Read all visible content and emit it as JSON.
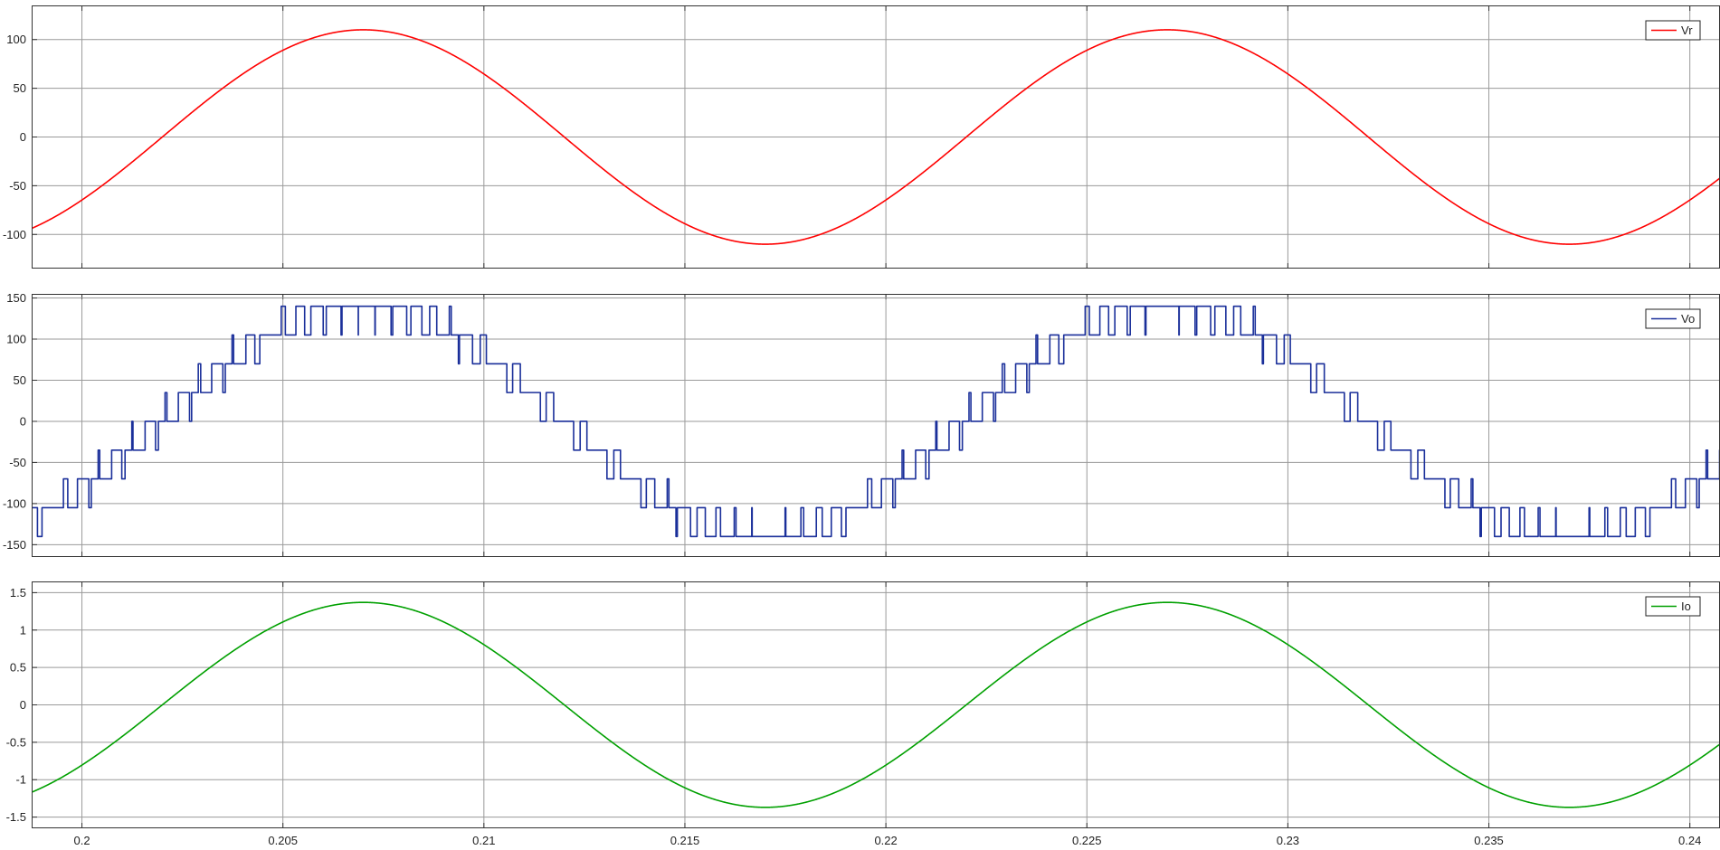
{
  "chart_data": [
    {
      "type": "line",
      "title": "",
      "xlabel": "",
      "ylabel": "",
      "xlim": [
        0.19875,
        0.24075
      ],
      "ylim": [
        -135,
        135
      ],
      "grid": true,
      "legend_position": "top-right",
      "x_ticks": [
        0.2,
        0.205,
        0.21,
        0.215,
        0.22,
        0.225,
        0.23,
        0.235,
        0.24
      ],
      "y_ticks": [
        -100,
        -50,
        0,
        50,
        100
      ],
      "series": [
        {
          "name": "Vr",
          "color": "#ff0000",
          "waveform": "sine",
          "amplitude": 110,
          "frequency_hz": 50,
          "peak_time": 0.207
        }
      ]
    },
    {
      "type": "line",
      "title": "",
      "xlabel": "",
      "ylabel": "",
      "xlim": [
        0.19875,
        0.24075
      ],
      "ylim": [
        -165,
        155
      ],
      "grid": true,
      "legend_position": "top-right",
      "x_ticks": [
        0.2,
        0.205,
        0.21,
        0.215,
        0.22,
        0.225,
        0.23,
        0.235,
        0.24
      ],
      "y_ticks": [
        -150,
        -100,
        -50,
        0,
        50,
        100,
        150
      ],
      "series": [
        {
          "name": "Vo",
          "color": "#1a2f9a",
          "waveform": "multilevel-pwm",
          "level_step": 35,
          "levels": [
            -140,
            -105,
            -70,
            -35,
            0,
            35,
            70,
            105,
            140
          ],
          "reference_amplitude": 140,
          "frequency_hz": 50,
          "peak_time": 0.207
        }
      ]
    },
    {
      "type": "line",
      "title": "",
      "xlabel": "",
      "ylabel": "",
      "xlim": [
        0.19875,
        0.24075
      ],
      "ylim": [
        -1.65,
        1.65
      ],
      "grid": true,
      "legend_position": "top-right",
      "x_ticks": [
        0.2,
        0.205,
        0.21,
        0.215,
        0.22,
        0.225,
        0.23,
        0.235,
        0.24
      ],
      "x_tick_labels": [
        "0.2",
        "0.205",
        "0.21",
        "0.215",
        "0.22",
        "0.225",
        "0.23",
        "0.235",
        "0.24"
      ],
      "y_ticks": [
        -1.5,
        -1,
        -0.5,
        0,
        0.5,
        1,
        1.5
      ],
      "series": [
        {
          "name": "Io",
          "color": "#00a000",
          "waveform": "sine",
          "amplitude": 1.37,
          "frequency_hz": 50,
          "peak_time": 0.207
        }
      ]
    }
  ]
}
